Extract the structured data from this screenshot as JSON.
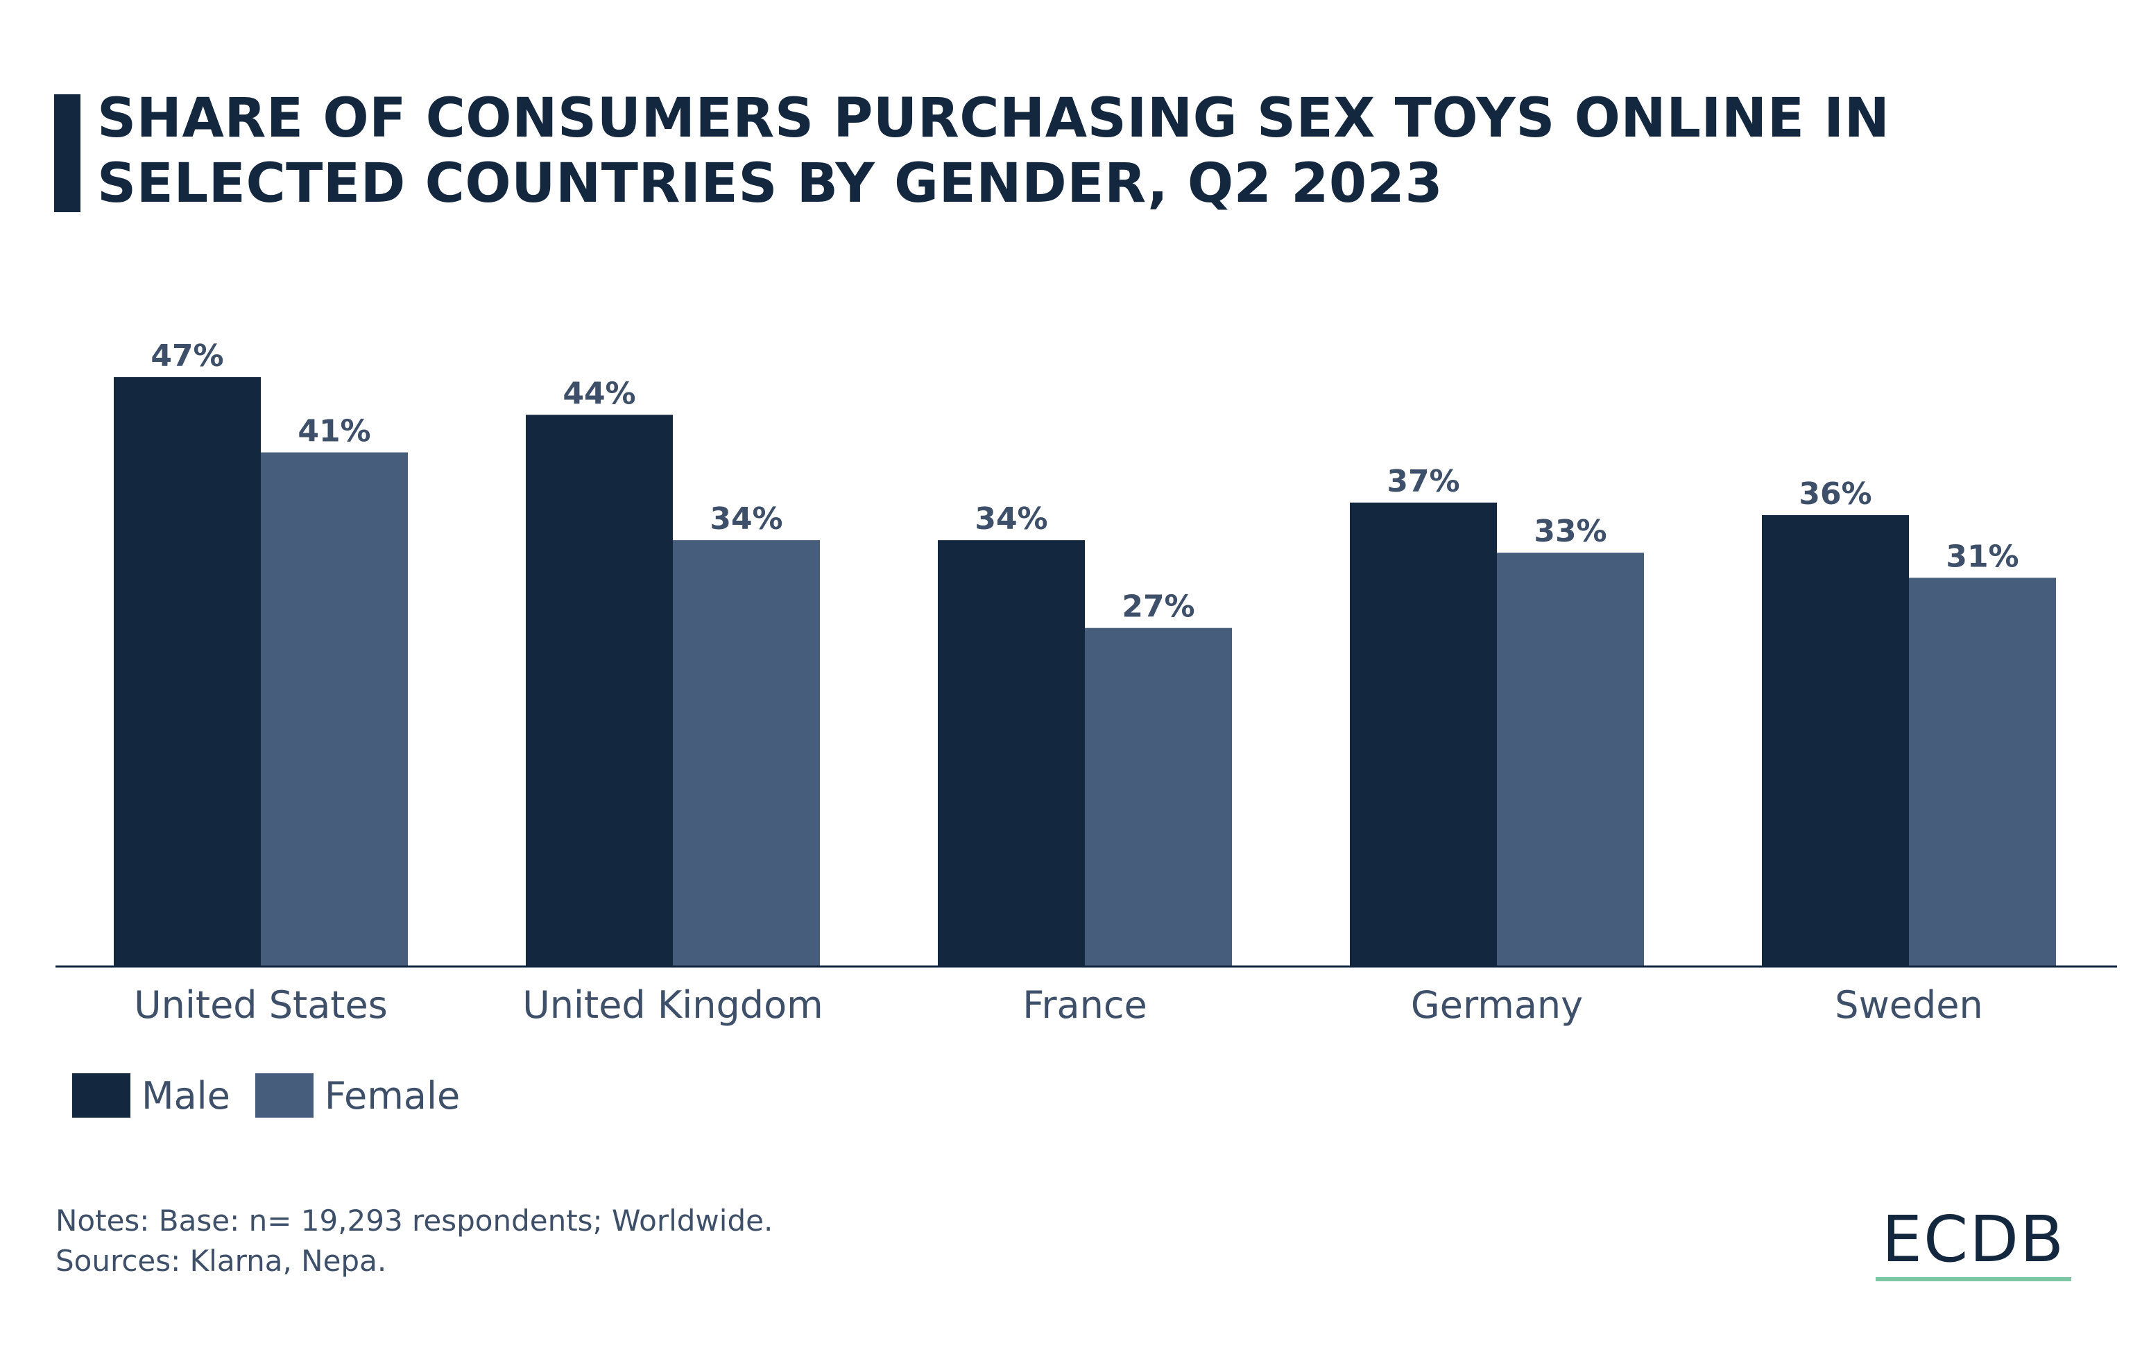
{
  "title": "SHARE OF CONSUMERS PURCHASING SEX TOYS ONLINE IN SELECTED COUNTRIES BY GENDER, Q2 2023",
  "colors": {
    "male": "#13273f",
    "female": "#465e7c",
    "label": "#3e5069",
    "accent": "#7cc6a6"
  },
  "legend": {
    "male": "Male",
    "female": "Female"
  },
  "notes": {
    "line1": "Notes: Base: n= 19,293 respondents; Worldwide.",
    "line2": "Sources: Klarna, Nepa."
  },
  "logo": "ECDB",
  "chart_data": {
    "type": "bar",
    "categories": [
      "United States",
      "United Kingdom",
      "France",
      "Germany",
      "Sweden"
    ],
    "series": [
      {
        "name": "Male",
        "values": [
          47,
          44,
          34,
          37,
          36
        ]
      },
      {
        "name": "Female",
        "values": [
          41,
          34,
          27,
          33,
          31
        ]
      }
    ],
    "value_labels": [
      [
        "47%",
        "44%",
        "34%",
        "37%",
        "36%"
      ],
      [
        "41%",
        "34%",
        "27%",
        "33%",
        "31%"
      ]
    ],
    "ylim": [
      0,
      47
    ],
    "grid": false,
    "legend_position": "bottom-left"
  }
}
